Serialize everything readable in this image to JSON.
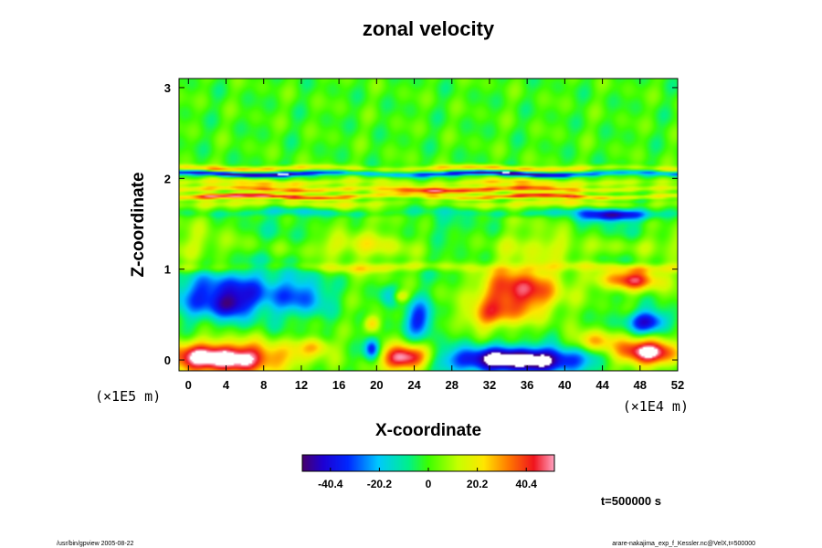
{
  "chart_data": {
    "type": "heatmap",
    "title": "zonal velocity",
    "xlabel": "X-coordinate",
    "ylabel": "Z-coordinate",
    "x_scale_label": "(×1E4 m)",
    "y_scale_label": "(×1E5 m)",
    "xlim": [
      -1,
      52
    ],
    "ylim": [
      -0.12,
      3.1
    ],
    "x_ticks": [
      0,
      4,
      8,
      12,
      16,
      20,
      24,
      28,
      32,
      36,
      40,
      44,
      48,
      52
    ],
    "y_ticks": [
      0,
      1,
      2,
      3
    ],
    "colorbar": {
      "min": -52,
      "max": 52,
      "ticks": [
        -40.4,
        -20.2,
        0,
        20.2,
        40.4
      ],
      "tick_labels": [
        "-40.4",
        "-20.2",
        "0",
        "20.2",
        "40.4"
      ],
      "colormap": "rainbow: purple-blue-cyan-green-yellow-red-pink"
    },
    "out_of_range_color": "#ffffff",
    "features": [
      {
        "type": "band",
        "z": 2.05,
        "dz": 0.025,
        "value": -46
      },
      {
        "type": "band",
        "z": 2.11,
        "dz": 0.03,
        "value": 24
      },
      {
        "type": "band",
        "z": 1.95,
        "dz": 0.04,
        "value": 20
      },
      {
        "type": "band",
        "z": 1.88,
        "dz": 0.03,
        "value": 28
      },
      {
        "type": "band",
        "z": 1.8,
        "dz": 0.025,
        "value": 36
      },
      {
        "type": "band",
        "z": 1.72,
        "dz": 0.04,
        "value": 14
      },
      {
        "type": "band",
        "z": 1.62,
        "dz": 0.04,
        "value": -10
      },
      {
        "type": "band",
        "z": 1.25,
        "dz": 0.12,
        "value": 10
      },
      {
        "type": "band",
        "z": 1.02,
        "dz": 0.05,
        "value": 14
      },
      {
        "type": "blob",
        "x": 26.0,
        "z": 1.86,
        "rx": 6.0,
        "rz": 0.04,
        "value": 30
      },
      {
        "type": "blob",
        "x": 5.0,
        "z": 1.8,
        "rx": 4.5,
        "rz": 0.03,
        "value": 22
      },
      {
        "type": "blob",
        "x": 45.0,
        "z": 1.59,
        "rx": 3.5,
        "rz": 0.06,
        "value": -42
      },
      {
        "type": "blob",
        "x": 4.0,
        "z": 0.72,
        "rx": 6.5,
        "rz": 0.26,
        "value": -40
      },
      {
        "type": "blob",
        "x": 4.3,
        "z": 0.6,
        "rx": 1.8,
        "rz": 0.12,
        "value": -18
      },
      {
        "type": "blob",
        "x": 12.5,
        "z": 0.7,
        "rx": 2.5,
        "rz": 0.2,
        "value": -22
      },
      {
        "type": "blob",
        "x": 24.5,
        "z": 0.45,
        "rx": 1.6,
        "rz": 0.2,
        "value": -34
      },
      {
        "type": "blob",
        "x": 21.5,
        "z": 0.7,
        "rx": 1.2,
        "rz": 0.12,
        "value": -18
      },
      {
        "type": "blob",
        "x": 35.0,
        "z": 0.75,
        "rx": 4.5,
        "rz": 0.26,
        "value": 46
      },
      {
        "type": "blob",
        "x": 32.0,
        "z": 0.48,
        "rx": 3.0,
        "rz": 0.14,
        "value": 26
      },
      {
        "type": "blob",
        "x": 47.0,
        "z": 0.88,
        "rx": 3.5,
        "rz": 0.12,
        "value": 44
      },
      {
        "type": "blob",
        "x": 48.8,
        "z": 0.42,
        "rx": 2.2,
        "rz": 0.12,
        "value": -42
      },
      {
        "type": "blob",
        "x": 19.5,
        "z": 0.4,
        "rx": 0.9,
        "rz": 0.09,
        "value": 26
      },
      {
        "type": "blob",
        "x": 22.5,
        "z": 0.7,
        "rx": 0.9,
        "rz": 0.07,
        "value": 26
      },
      {
        "type": "blob",
        "x": 19.5,
        "z": 0.12,
        "rx": 0.8,
        "rz": 0.12,
        "value": -40
      },
      {
        "type": "blob",
        "x": 3.5,
        "z": 0.02,
        "rx": 7.0,
        "rz": 0.18,
        "value": 62
      },
      {
        "type": "blob",
        "x": 23.0,
        "z": 0.02,
        "rx": 2.5,
        "rz": 0.14,
        "value": 62
      },
      {
        "type": "blob",
        "x": 35.0,
        "z": 0.0,
        "rx": 7.5,
        "rz": 0.14,
        "value": -66
      },
      {
        "type": "blob",
        "x": 48.5,
        "z": 0.08,
        "rx": 3.5,
        "rz": 0.15,
        "value": 58
      },
      {
        "type": "blob",
        "x": 43.0,
        "z": 0.2,
        "rx": 2.0,
        "rz": 0.12,
        "value": 28
      },
      {
        "type": "blob",
        "x": 13.5,
        "z": 0.15,
        "rx": 1.8,
        "rz": 0.1,
        "value": 22
      }
    ]
  },
  "time_label": "t=500000 s",
  "footer": {
    "left": "/usr/bin/gpview 2005-08-22",
    "right": "arare-nakajima_exp_f_Kessler.nc@VelX,t=500000"
  }
}
